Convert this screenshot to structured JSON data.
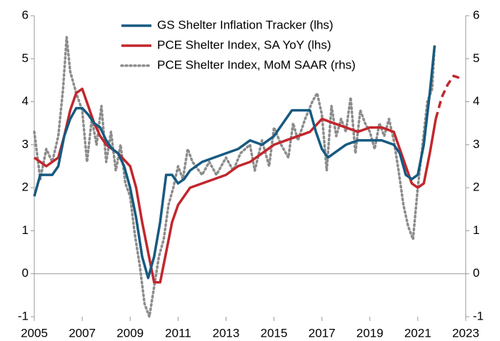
{
  "chart_data": {
    "type": "line",
    "xlim": [
      2005,
      2023
    ],
    "xticks": [
      2005,
      2007,
      2009,
      2011,
      2013,
      2015,
      2017,
      2019,
      2021,
      2023
    ],
    "ylim": [
      -1,
      6
    ],
    "yticks": [
      -1,
      0,
      1,
      2,
      3,
      4,
      5,
      6
    ],
    "y2lim": [
      -1,
      6
    ],
    "y2ticks": [
      -1,
      0,
      1,
      2,
      3,
      4,
      5,
      6
    ],
    "legend": "top",
    "series": [
      {
        "name": "GS Shelter Inflation Tracker (lhs)",
        "color": "#175a80",
        "style": "solid",
        "axis": "y",
        "x": [
          2005.0,
          2005.25,
          2005.5,
          2005.75,
          2006.0,
          2006.25,
          2006.5,
          2006.75,
          2007.0,
          2007.25,
          2007.5,
          2007.75,
          2008.0,
          2008.25,
          2008.5,
          2008.75,
          2009.0,
          2009.25,
          2009.5,
          2009.75,
          2010.0,
          2010.25,
          2010.5,
          2010.75,
          2011.0,
          2011.25,
          2011.5,
          2011.75,
          2012.0,
          2012.5,
          2013.0,
          2013.5,
          2014.0,
          2014.5,
          2015.0,
          2015.5,
          2015.75,
          2016.0,
          2016.5,
          2016.75,
          2017.0,
          2017.25,
          2017.5,
          2018.0,
          2018.5,
          2019.0,
          2019.5,
          2020.0,
          2020.25,
          2020.5,
          2020.75,
          2021.0,
          2021.25,
          2021.5,
          2021.7
        ],
        "values": [
          1.8,
          2.3,
          2.3,
          2.3,
          2.5,
          3.2,
          3.6,
          3.85,
          3.85,
          3.7,
          3.5,
          3.4,
          3.1,
          2.9,
          2.8,
          2.5,
          2.0,
          1.3,
          0.4,
          -0.1,
          0.4,
          1.2,
          2.3,
          2.3,
          2.1,
          2.2,
          2.4,
          2.5,
          2.6,
          2.7,
          2.8,
          2.9,
          3.1,
          3.0,
          3.2,
          3.6,
          3.8,
          3.8,
          3.8,
          3.3,
          2.9,
          2.7,
          2.8,
          3.0,
          3.1,
          3.1,
          3.1,
          3.0,
          2.8,
          2.3,
          2.2,
          2.3,
          3.0,
          4.2,
          5.3
        ]
      },
      {
        "name": "PCE Shelter Index, SA YoY (lhs)",
        "color": "#c1272d",
        "style": "solid",
        "dashed_after": 2021.75,
        "axis": "y",
        "x": [
          2005.0,
          2005.5,
          2006.0,
          2006.25,
          2006.5,
          2006.75,
          2007.0,
          2007.25,
          2007.5,
          2007.75,
          2008.0,
          2008.5,
          2009.0,
          2009.25,
          2009.5,
          2009.75,
          2010.0,
          2010.25,
          2010.5,
          2010.75,
          2011.0,
          2011.5,
          2012.0,
          2012.5,
          2013.0,
          2013.5,
          2014.0,
          2014.5,
          2015.0,
          2015.5,
          2016.0,
          2016.5,
          2017.0,
          2017.5,
          2018.0,
          2018.5,
          2019.0,
          2019.5,
          2020.0,
          2020.25,
          2020.5,
          2020.75,
          2021.0,
          2021.25,
          2021.5,
          2021.75,
          2022.0,
          2022.25,
          2022.5,
          2022.75
        ],
        "values": [
          2.7,
          2.5,
          2.7,
          3.2,
          3.8,
          4.2,
          4.3,
          3.9,
          3.5,
          3.2,
          3.0,
          2.8,
          2.5,
          2.0,
          1.2,
          0.5,
          -0.2,
          -0.2,
          0.5,
          1.2,
          1.6,
          2.0,
          2.1,
          2.2,
          2.3,
          2.5,
          2.6,
          2.8,
          3.0,
          3.1,
          3.2,
          3.3,
          3.6,
          3.5,
          3.4,
          3.3,
          3.4,
          3.4,
          3.3,
          2.9,
          2.5,
          2.1,
          2.0,
          2.1,
          2.8,
          3.6,
          4.1,
          4.4,
          4.6,
          4.55
        ]
      },
      {
        "name": "PCE Shelter Index, MoM SAAR (rhs)",
        "color": "#8c8c8c",
        "style": "dotted",
        "axis": "y2",
        "x": [
          2005.0,
          2005.25,
          2005.5,
          2005.75,
          2006.0,
          2006.2,
          2006.35,
          2006.5,
          2006.75,
          2007.0,
          2007.2,
          2007.4,
          2007.6,
          2007.8,
          2008.0,
          2008.2,
          2008.4,
          2008.6,
          2008.8,
          2009.0,
          2009.2,
          2009.4,
          2009.6,
          2009.8,
          2010.0,
          2010.2,
          2010.4,
          2010.6,
          2010.8,
          2011.0,
          2011.2,
          2011.4,
          2011.6,
          2012.0,
          2012.3,
          2012.6,
          2013.0,
          2013.3,
          2013.6,
          2014.0,
          2014.2,
          2014.5,
          2014.8,
          2015.0,
          2015.3,
          2015.6,
          2015.8,
          2016.0,
          2016.3,
          2016.6,
          2016.8,
          2017.0,
          2017.2,
          2017.4,
          2017.6,
          2017.8,
          2018.0,
          2018.2,
          2018.4,
          2018.6,
          2018.8,
          2019.0,
          2019.2,
          2019.4,
          2019.6,
          2019.8,
          2020.0,
          2020.2,
          2020.4,
          2020.6,
          2020.8,
          2021.0,
          2021.2,
          2021.4,
          2021.6,
          2021.7
        ],
        "values": [
          3.3,
          2.2,
          2.9,
          2.6,
          3.2,
          4.3,
          5.5,
          4.7,
          4.2,
          3.8,
          2.6,
          3.6,
          3.0,
          3.9,
          2.6,
          3.3,
          2.4,
          3.0,
          2.1,
          1.8,
          0.9,
          0.2,
          -0.7,
          -1.0,
          -0.3,
          0.4,
          0.8,
          1.6,
          2.0,
          2.5,
          2.2,
          2.9,
          2.6,
          2.3,
          2.6,
          2.3,
          2.7,
          2.4,
          2.8,
          3.0,
          2.4,
          3.1,
          2.5,
          3.4,
          3.0,
          2.7,
          3.5,
          3.1,
          3.6,
          4.0,
          4.2,
          3.7,
          2.4,
          3.9,
          3.2,
          3.6,
          3.3,
          4.1,
          2.8,
          3.8,
          3.5,
          3.3,
          2.9,
          3.5,
          3.2,
          3.6,
          3.1,
          2.4,
          1.6,
          1.1,
          0.8,
          2.0,
          3.0,
          4.0,
          4.3,
          5.3
        ]
      }
    ]
  }
}
